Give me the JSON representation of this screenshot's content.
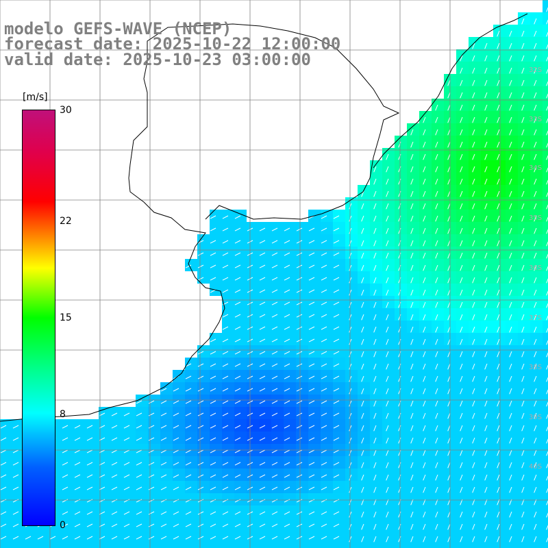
{
  "title": {
    "line1": "modelo GEFS-WAVE (NCEP)",
    "line2": "forecast date: 2025-10-22 12:00:00",
    "line3": "valid date: 2025-10-23 03:00:00"
  },
  "colorbar": {
    "unit": "[m/s]",
    "ticks": [
      "30",
      "22",
      "15",
      "8",
      "0"
    ],
    "tick_values": [
      30,
      22,
      15,
      8,
      0
    ],
    "range": [
      0,
      30
    ]
  },
  "grid": {
    "lat_labels": [
      "32S",
      "33S",
      "34S",
      "35S",
      "36S",
      "37S",
      "38S",
      "39S",
      "40S"
    ]
  },
  "field": {
    "variable": "wind speed",
    "units": "m/s",
    "dominant_direction": "from north-east",
    "max_region": "north-east (about 14-16 m/s)",
    "min_region": "center-south off the coast (about 2-4 m/s)"
  },
  "colors": {
    "land": "#ffffff",
    "coastline": "#000000",
    "grid": "#808080",
    "title": "#808080",
    "arrows": "#ffffff"
  }
}
